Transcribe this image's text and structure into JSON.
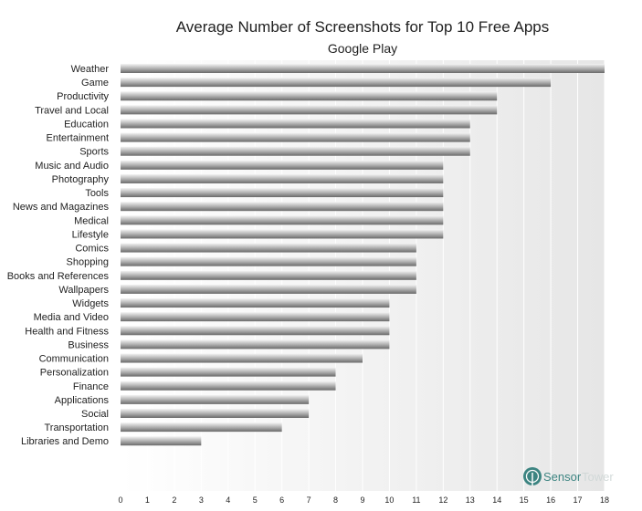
{
  "chart_data": {
    "type": "bar",
    "orientation": "horizontal",
    "title": "Average Number of Screenshots for Top 10 Free Apps",
    "subtitle": "Google Play",
    "xlabel": "",
    "ylabel": "",
    "xlim": [
      0,
      18
    ],
    "x_ticks": [
      0,
      1,
      2,
      3,
      4,
      5,
      6,
      7,
      8,
      9,
      10,
      11,
      12,
      13,
      14,
      15,
      16,
      17,
      18
    ],
    "grid": true,
    "legend": "none",
    "categories": [
      "Weather",
      "Game",
      "Productivity",
      "Travel and Local",
      "Education",
      "Entertainment",
      "Sports",
      "Music and Audio",
      "Photography",
      "Tools",
      "News and Magazines",
      "Medical",
      "Lifestyle",
      "Comics",
      "Shopping",
      "Books and References",
      "Wallpapers",
      "Widgets",
      "Media and Video",
      "Health and Fitness",
      "Business",
      "Communication",
      "Personalization",
      "Finance",
      "Applications",
      "Social",
      "Transportation",
      "Libraries and Demo"
    ],
    "values": [
      18,
      16,
      14,
      14,
      13,
      13,
      13,
      12,
      12,
      12,
      12,
      12,
      12,
      11,
      11,
      11,
      11,
      10,
      10,
      10,
      10,
      9,
      8,
      8,
      7,
      7,
      6,
      3
    ],
    "colors": {
      "bar_light": "#f0f0f0",
      "bar_mid": "#b0b0b0",
      "bar_dark": "#6a6a6a",
      "plot_bg_light": "#ffffff",
      "plot_bg_dark": "#e6e6e6",
      "grid": "#ffffff"
    }
  },
  "watermark": {
    "icon": "sensor-tower-logo-icon",
    "text_a": "Sensor",
    "text_b": "Tower",
    "color_a": "#2a7a76",
    "color_b": "#cfd7d6"
  }
}
